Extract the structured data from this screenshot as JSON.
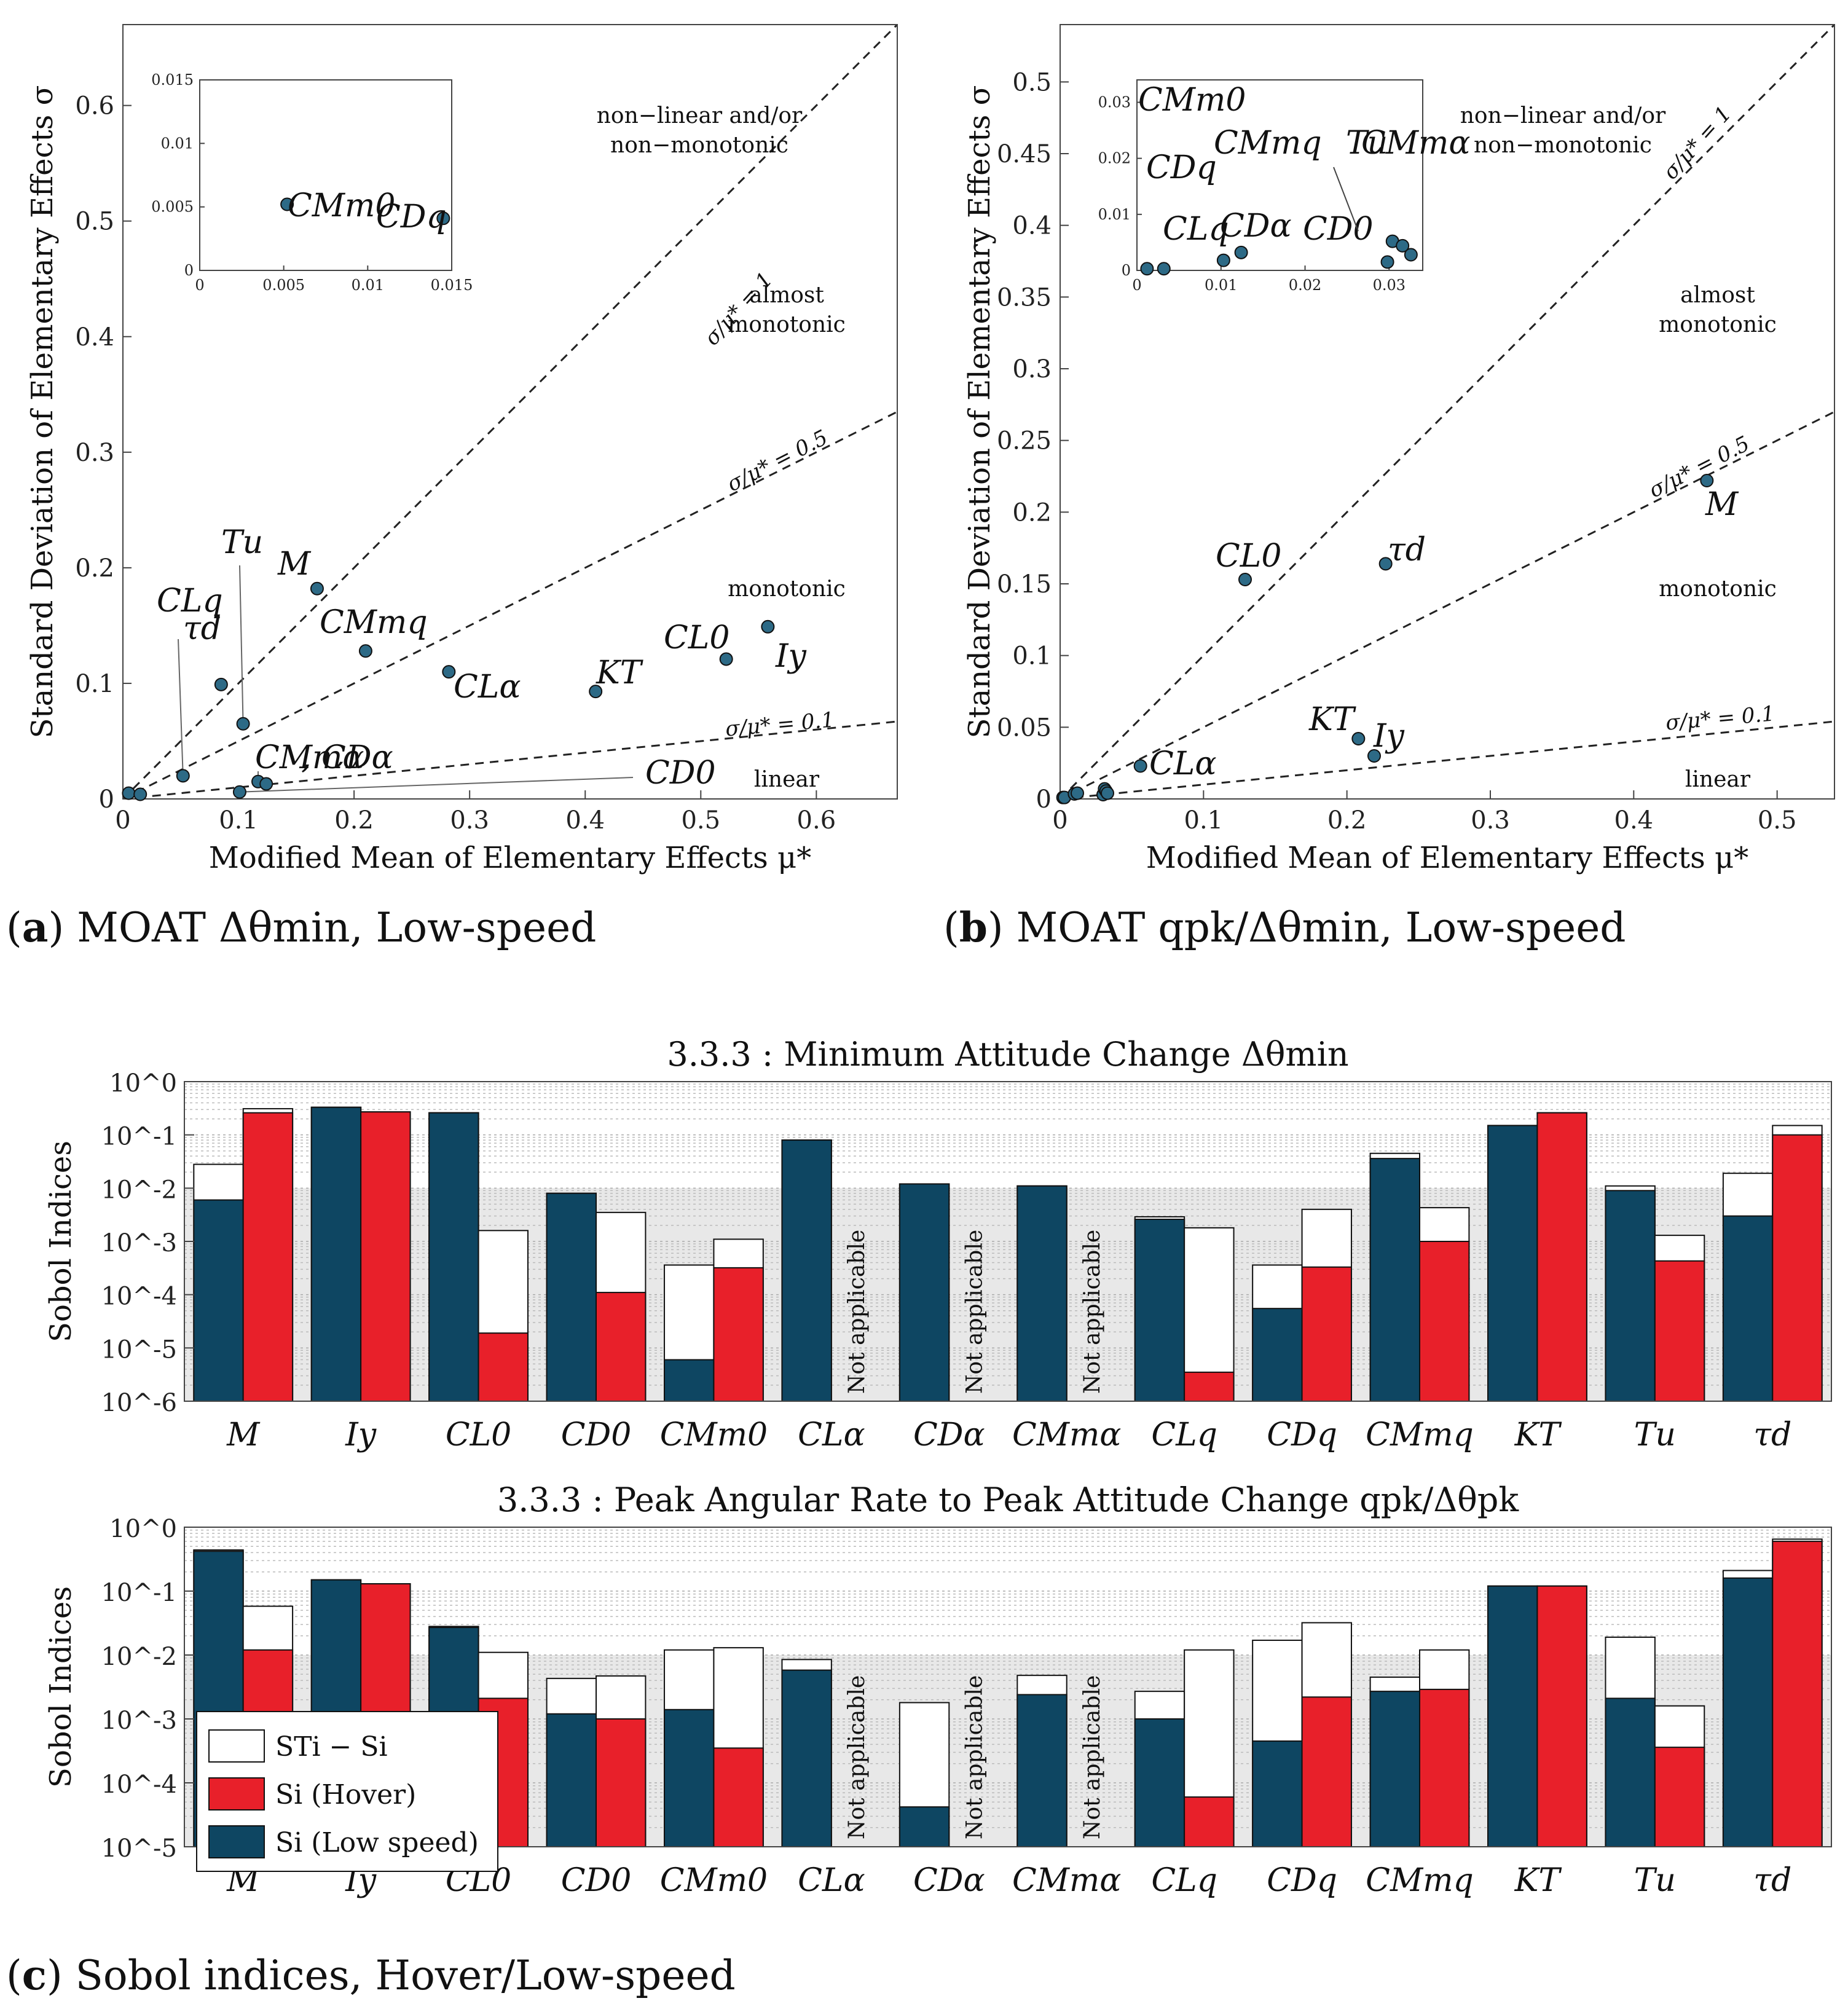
{
  "colors": {
    "low_speed": "#0e4662",
    "hover": "#e8202a",
    "total_minus_first": "#ffffff",
    "point": "#2d6a86",
    "shade": "#e8e8e8"
  },
  "captions": {
    "a_letter": "a",
    "a_text": "MOAT Δθmin, Low-speed",
    "b_letter": "b",
    "b_text": "MOAT qpk/Δθmin, Low-speed",
    "c_letter": "c",
    "c_text": "Sobol indices, Hover/Low-speed"
  },
  "chart_data": [
    {
      "id": "a",
      "type": "scatter",
      "xlabel": "Modified Mean of Elementary Effects μ*",
      "ylabel": "Standard Deviation of Elementary Effects σ",
      "xlim": [
        0,
        0.67
      ],
      "ylim": [
        0,
        0.67
      ],
      "xticks": [
        0,
        0.1,
        0.2,
        0.3,
        0.4,
        0.5,
        0.6
      ],
      "xtick_labels": [
        "0",
        "0.1",
        "0.2",
        "0.3",
        "0.4",
        "0.5",
        "0.6"
      ],
      "yticks": [
        0,
        0.1,
        0.2,
        0.3,
        0.4,
        0.5,
        0.6
      ],
      "ytick_labels": [
        "0",
        "0.1",
        "0.2",
        "0.3",
        "0.4",
        "0.5",
        "0.6"
      ],
      "lines": [
        {
          "slope": 1,
          "label": "σ/μ* = 1"
        },
        {
          "slope": 0.5,
          "label": "σ/μ* = 0.5"
        },
        {
          "slope": 0.1,
          "label": "σ/μ* = 0.1"
        }
      ],
      "regions": [
        "non−linear and/or",
        "non−monotonic",
        "almost",
        "monotonic",
        "monotonic",
        "linear"
      ],
      "points": [
        {
          "label": "M",
          "x": 0.168,
          "y": 0.182
        },
        {
          "label": "Iy",
          "x": 0.558,
          "y": 0.149
        },
        {
          "label": "CL0",
          "x": 0.522,
          "y": 0.121
        },
        {
          "label": "CMmq",
          "x": 0.21,
          "y": 0.128
        },
        {
          "label": "CLα",
          "x": 0.282,
          "y": 0.11
        },
        {
          "label": "KT",
          "x": 0.409,
          "y": 0.093
        },
        {
          "label": "τd",
          "x": 0.085,
          "y": 0.099
        },
        {
          "label": "Tu",
          "x": 0.104,
          "y": 0.065
        },
        {
          "label": "CLq",
          "x": 0.052,
          "y": 0.02
        },
        {
          "label": "CMmα",
          "x": 0.117,
          "y": 0.015
        },
        {
          "label": "CDα",
          "x": 0.124,
          "y": 0.013
        },
        {
          "label": "CD0",
          "x": 0.101,
          "y": 0.006
        },
        {
          "label": "CMm0",
          "x": 0.005,
          "y": 0.005
        },
        {
          "label": "CDq",
          "x": 0.015,
          "y": 0.004
        }
      ],
      "inset": {
        "xlim": [
          0,
          0.015
        ],
        "ylim": [
          0,
          0.015
        ],
        "xtick_labels": [
          "0",
          "0.005",
          "0.01",
          "0.015"
        ],
        "ytick_labels": [
          "0",
          "0.005",
          "0.01",
          "0.015"
        ],
        "points": [
          {
            "label": "CMm0",
            "x": 0.0052,
            "y": 0.0052
          },
          {
            "label": "CDq",
            "x": 0.0145,
            "y": 0.0041
          }
        ]
      }
    },
    {
      "id": "b",
      "type": "scatter",
      "xlabel": "Modified Mean of Elementary Effects μ*",
      "ylabel": "Standard Deviation of Elementary Effects σ",
      "xlim": [
        0,
        0.54
      ],
      "ylim": [
        0,
        0.54
      ],
      "xticks": [
        0,
        0.1,
        0.2,
        0.3,
        0.4,
        0.5
      ],
      "xtick_labels": [
        "0",
        "0.1",
        "0.2",
        "0.3",
        "0.4",
        "0.5"
      ],
      "yticks": [
        0,
        0.05,
        0.1,
        0.15,
        0.2,
        0.25,
        0.3,
        0.35,
        0.4,
        0.45,
        0.5
      ],
      "ytick_labels": [
        "0",
        "0.05",
        "0.1",
        "0.15",
        "0.2",
        "0.25",
        "0.3",
        "0.35",
        "0.4",
        "0.45",
        "0.5"
      ],
      "lines": [
        {
          "slope": 1,
          "label": "σ/μ* = 1"
        },
        {
          "slope": 0.5,
          "label": "σ/μ* = 0.5"
        },
        {
          "slope": 0.1,
          "label": "σ/μ* = 0.1"
        }
      ],
      "regions": [
        "non−linear and/or",
        "non−monotonic",
        "almost",
        "monotonic",
        "monotonic",
        "linear"
      ],
      "points": [
        {
          "label": "M",
          "x": 0.451,
          "y": 0.222
        },
        {
          "label": "τd",
          "x": 0.227,
          "y": 0.164
        },
        {
          "label": "CL0",
          "x": 0.129,
          "y": 0.153
        },
        {
          "label": "KT",
          "x": 0.208,
          "y": 0.042
        },
        {
          "label": "Iy",
          "x": 0.219,
          "y": 0.03
        },
        {
          "label": "CLα",
          "x": 0.056,
          "y": 0.023
        },
        {
          "label": "CMm0",
          "x": 0.002,
          "y": 0.001
        },
        {
          "label": "CDq",
          "x": 0.003,
          "y": 0.001
        },
        {
          "label": "CLq",
          "x": 0.01,
          "y": 0.0035
        },
        {
          "label": "CDα",
          "x": 0.012,
          "y": 0.004
        },
        {
          "label": "CD0",
          "x": 0.03,
          "y": 0.003
        },
        {
          "label": "CMmq",
          "x": 0.031,
          "y": 0.007
        },
        {
          "label": "Tu",
          "x": 0.032,
          "y": 0.0055
        },
        {
          "label": "CMmα",
          "x": 0.033,
          "y": 0.004
        }
      ],
      "inset": {
        "xlim": [
          0,
          0.034
        ],
        "ylim": [
          0,
          0.034
        ],
        "xtick_labels": [
          "0",
          "0.01",
          "0.02",
          "0.03"
        ],
        "ytick_labels": [
          "0",
          "0.01",
          "0.02",
          "0.03"
        ],
        "points": [
          {
            "label": "CMm0",
            "x": 0.0012,
            "y": 0.0003
          },
          {
            "label": "CDq",
            "x": 0.0032,
            "y": 0.0003
          },
          {
            "label": "CLq",
            "x": 0.0103,
            "y": 0.0018
          },
          {
            "label": "CDα",
            "x": 0.0124,
            "y": 0.0032
          },
          {
            "label": "CD0",
            "x": 0.0298,
            "y": 0.0015
          },
          {
            "label": "CMmq",
            "x": 0.0304,
            "y": 0.0052
          },
          {
            "label": "Tu",
            "x": 0.0316,
            "y": 0.0044
          },
          {
            "label": "CMmα",
            "x": 0.0326,
            "y": 0.0028
          }
        ]
      }
    },
    {
      "id": "c1",
      "type": "bar",
      "scale": "log",
      "title": "3.3.3 : Minimum Attitude Change Δθmin",
      "ylabel": "Sobol Indices",
      "ylim": [
        1e-06,
        1
      ],
      "ytick_labels": [
        "10^-6",
        "10^-5",
        "10^-4",
        "10^-3",
        "10^-2",
        "10^-1",
        "10^0"
      ],
      "shade_below": 0.01,
      "categories": [
        "M",
        "Iy",
        "CL0",
        "CD0",
        "CMm0",
        "CLα",
        "CDα",
        "CMmα",
        "CLq",
        "CDq",
        "CMmq",
        "KT",
        "Tu",
        "τd"
      ],
      "not_applicable": "Not applicable",
      "series": [
        {
          "name": "Si (Low speed)",
          "values": [
            0.006,
            0.33,
            0.26,
            0.008,
            6e-06,
            0.08,
            0.012,
            0.011,
            0.0026,
            5.5e-05,
            0.036,
            0.15,
            0.009,
            0.003
          ]
        },
        {
          "name": "STi (Low speed)",
          "values": [
            0.028,
            0.33,
            0.26,
            0.008,
            0.00036,
            0.08,
            0.012,
            0.011,
            0.0029,
            0.00036,
            0.045,
            0.15,
            0.011,
            0.019
          ]
        },
        {
          "name": "Si (Hover)",
          "values": [
            0.26,
            0.27,
            1.9e-05,
            0.00011,
            0.00032,
            null,
            null,
            null,
            3.5e-06,
            0.00033,
            0.001,
            0.26,
            0.00043,
            0.1
          ]
        },
        {
          "name": "STi (Hover)",
          "values": [
            0.31,
            0.27,
            0.0016,
            0.0035,
            0.0011,
            null,
            null,
            null,
            0.0018,
            0.004,
            0.0043,
            0.26,
            0.0013,
            0.15
          ]
        }
      ]
    },
    {
      "id": "c2",
      "type": "bar",
      "scale": "log",
      "title": "3.3.3 :  Peak Angular Rate to Peak Attitude Change qpk/Δθpk",
      "ylabel": "Sobol Indices",
      "ylim": [
        1e-05,
        1
      ],
      "ytick_labels": [
        "10^-5",
        "10^-4",
        "10^-3",
        "10^-2",
        "10^-1",
        "10^0"
      ],
      "shade_below": 0.01,
      "categories": [
        "M",
        "Iy",
        "CL0",
        "CD0",
        "CMm0",
        "CLα",
        "CDα",
        "CMmα",
        "CLq",
        "CDq",
        "CMmq",
        "KT",
        "Tu",
        "τd"
      ],
      "not_applicable": "Not applicable",
      "legend": [
        "STi − Si",
        "Si (Hover)",
        "Si (Low speed)"
      ],
      "series": [
        {
          "name": "Si (Low speed)",
          "values": [
            0.42,
            0.15,
            0.027,
            0.0012,
            0.0014,
            0.0058,
            4.2e-05,
            0.0024,
            0.001,
            0.00045,
            0.0027,
            0.12,
            0.0021,
            0.16
          ]
        },
        {
          "name": "STi (Low speed)",
          "values": [
            0.44,
            0.15,
            0.028,
            0.0043,
            0.012,
            0.0085,
            0.0018,
            0.0048,
            0.0027,
            0.017,
            0.0045,
            0.12,
            0.019,
            0.21
          ]
        },
        {
          "name": "Si (Hover)",
          "values": [
            0.012,
            0.13,
            0.0021,
            0.001,
            0.00035,
            null,
            null,
            null,
            6e-05,
            0.0022,
            0.0029,
            0.12,
            0.00036,
            0.6
          ]
        },
        {
          "name": "STi (Hover)",
          "values": [
            0.058,
            0.13,
            0.011,
            0.0047,
            0.013,
            null,
            null,
            null,
            0.012,
            0.032,
            0.012,
            0.12,
            0.0016,
            0.65
          ]
        }
      ]
    }
  ]
}
